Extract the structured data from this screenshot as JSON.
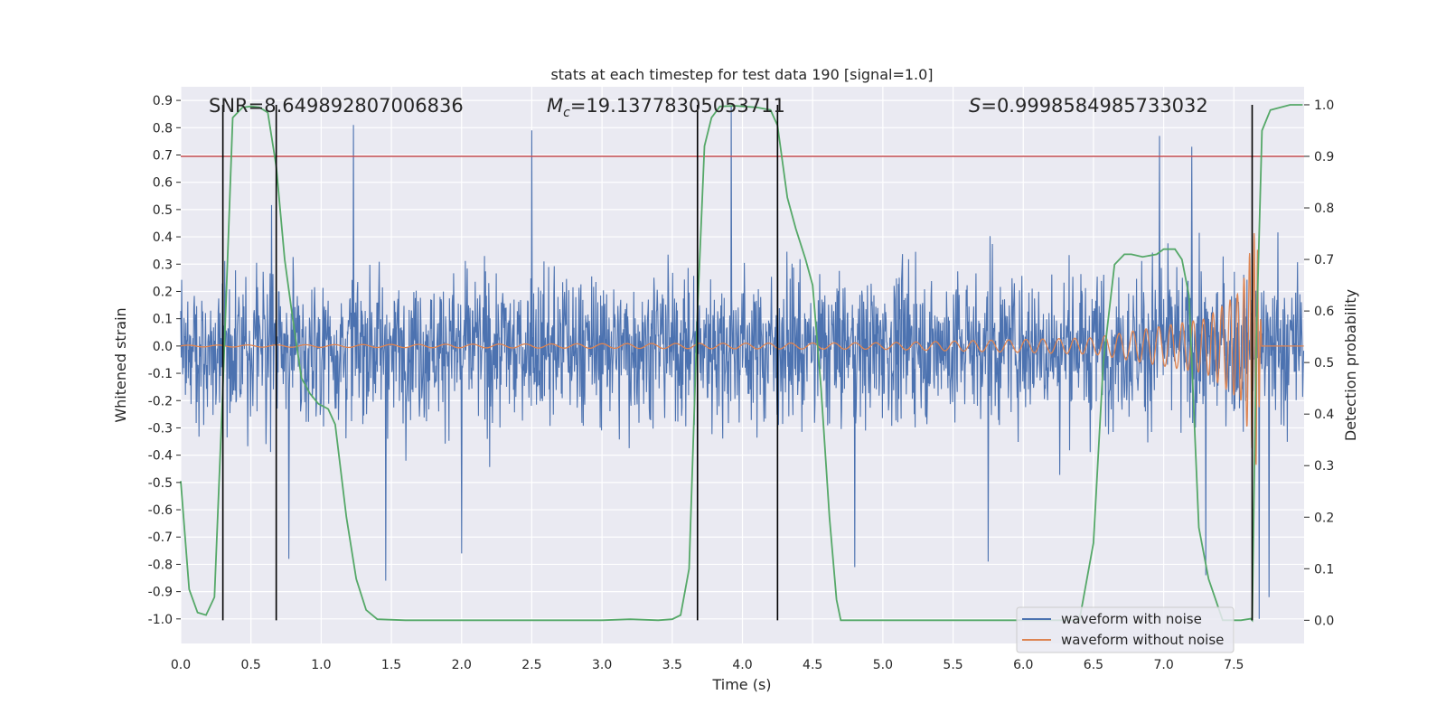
{
  "chart_data": {
    "type": "line",
    "title": "stats at each timestep for test data 190 [signal=1.0]",
    "xlabel": "Time (s)",
    "ylabel": "Whitened strain",
    "y2label": "Detection probability",
    "xlim": [
      0.0,
      8.0
    ],
    "ylim": [
      -1.09,
      0.95
    ],
    "y2lim": [
      -0.045,
      1.035
    ],
    "grid": true,
    "x_ticks": [
      "0.0",
      "0.5",
      "1.0",
      "1.5",
      "2.0",
      "2.5",
      "3.0",
      "3.5",
      "4.0",
      "4.5",
      "5.0",
      "5.5",
      "6.0",
      "6.5",
      "7.0",
      "7.5"
    ],
    "y_ticks": [
      "0.9",
      "0.8",
      "0.7",
      "0.6",
      "0.5",
      "0.4",
      "0.3",
      "0.2",
      "0.1",
      "0.0",
      "-0.1",
      "-0.2",
      "-0.3",
      "-0.4",
      "-0.5",
      "-0.6",
      "-0.7",
      "-0.8",
      "-0.9",
      "-1.0"
    ],
    "y2_ticks": [
      "1.0",
      "0.9",
      "0.8",
      "0.7",
      "0.6",
      "0.5",
      "0.4",
      "0.3",
      "0.2",
      "0.1",
      "0.0"
    ],
    "annotations": {
      "snr": "SNR=8.649892807006836",
      "mc_symbol": "M",
      "mc_sub": "c",
      "mc_value": "=19.13778305053711",
      "s_symbol": "S",
      "s_value": "=0.9998584985733032"
    },
    "threshold": {
      "y2": 0.9,
      "color": "#c44e52"
    },
    "vertical_lines_x": [
      0.3,
      0.68,
      3.68,
      4.25,
      7.63
    ],
    "legend": {
      "position": "lower-right",
      "entries": [
        "waveform with noise",
        "waveform without noise"
      ]
    },
    "series": [
      {
        "name": "waveform with noise",
        "color": "#4c72b0",
        "noise_envelope": {
          "typical_abs": 0.3,
          "max": 0.88,
          "min": -1.0
        },
        "spikes": [
          [
            1.23,
            0.81
          ],
          [
            2.5,
            0.79
          ],
          [
            3.92,
            0.88
          ],
          [
            4.25,
            0.72
          ],
          [
            6.97,
            0.77
          ],
          [
            7.2,
            0.73
          ],
          [
            0.77,
            -0.78
          ],
          [
            1.46,
            -0.86
          ],
          [
            2.0,
            -0.76
          ],
          [
            4.8,
            -0.81
          ],
          [
            5.75,
            -0.79
          ],
          [
            7.3,
            -0.84
          ],
          [
            7.68,
            -1.0
          ],
          [
            7.75,
            -0.92
          ]
        ]
      },
      {
        "name": "waveform without noise",
        "color": "#dd8452",
        "description_points": [
          [
            0.0,
            0.003
          ],
          [
            5.0,
            0.012
          ],
          [
            6.5,
            0.03
          ],
          [
            7.3,
            0.1
          ],
          [
            7.55,
            0.2
          ],
          [
            7.66,
            0.45
          ],
          [
            7.7,
            0.0
          ],
          [
            8.0,
            0.0
          ]
        ]
      },
      {
        "name": "detection probability",
        "color": "#55a868",
        "axis": "y2",
        "x": [
          0.0,
          0.06,
          0.12,
          0.18,
          0.24,
          0.3,
          0.37,
          0.44,
          0.5,
          0.56,
          0.62,
          0.68,
          0.74,
          0.8,
          0.86,
          0.92,
          0.98,
          1.05,
          1.1,
          1.18,
          1.25,
          1.32,
          1.4,
          1.6,
          2.0,
          2.5,
          3.0,
          3.2,
          3.4,
          3.5,
          3.56,
          3.62,
          3.68,
          3.73,
          3.78,
          3.84,
          3.95,
          4.1,
          4.2,
          4.25,
          4.32,
          4.38,
          4.45,
          4.5,
          4.56,
          4.62,
          4.67,
          4.7,
          5.0,
          6.0,
          6.4,
          6.5,
          6.57,
          6.65,
          6.72,
          6.77,
          6.85,
          6.95,
          7.0,
          7.08,
          7.13,
          7.18,
          7.25,
          7.32,
          7.42,
          7.55,
          7.62,
          7.63,
          7.66,
          7.7,
          7.76,
          7.9,
          7.99
        ],
        "y": [
          0.27,
          0.06,
          0.015,
          0.01,
          0.045,
          0.45,
          0.975,
          0.995,
          0.997,
          0.995,
          0.985,
          0.88,
          0.7,
          0.58,
          0.47,
          0.44,
          0.42,
          0.41,
          0.38,
          0.2,
          0.08,
          0.02,
          0.002,
          0.0,
          0.0,
          0.0,
          0.0,
          0.002,
          0.0,
          0.002,
          0.01,
          0.1,
          0.6,
          0.92,
          0.975,
          0.997,
          0.998,
          0.995,
          0.99,
          0.96,
          0.82,
          0.76,
          0.7,
          0.65,
          0.45,
          0.2,
          0.04,
          0.0,
          0.0,
          0.0,
          0.0,
          0.15,
          0.5,
          0.69,
          0.71,
          0.71,
          0.705,
          0.71,
          0.72,
          0.72,
          0.7,
          0.63,
          0.18,
          0.08,
          0.0,
          0.0,
          0.003,
          0.0,
          0.55,
          0.95,
          0.99,
          1.0,
          1.0
        ]
      }
    ]
  }
}
